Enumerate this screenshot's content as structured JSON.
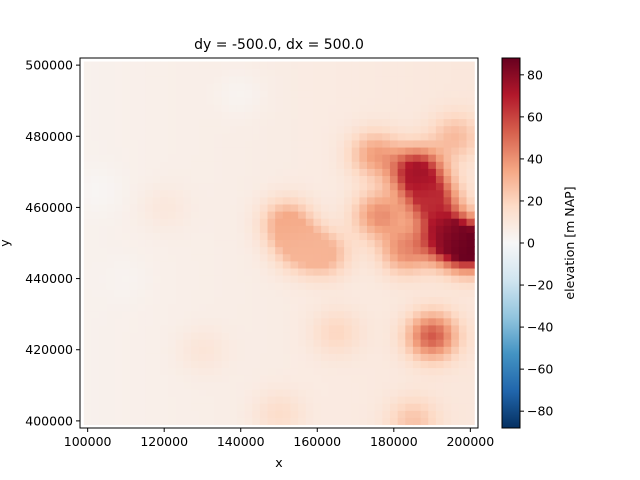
{
  "chart_data": {
    "type": "heatmap",
    "title": "dy = -500.0, dx = 500.0",
    "xlabel": "x",
    "ylabel": "y",
    "xlim": [
      98000,
      202000
    ],
    "ylim": [
      398000,
      502000
    ],
    "x_ticks": [
      {
        "value": 100000,
        "label": "100000"
      },
      {
        "value": 120000,
        "label": "120000"
      },
      {
        "value": 140000,
        "label": "140000"
      },
      {
        "value": 160000,
        "label": "160000"
      },
      {
        "value": 180000,
        "label": "180000"
      },
      {
        "value": 200000,
        "label": "200000"
      }
    ],
    "y_ticks": [
      {
        "value": 400000,
        "label": "400000"
      },
      {
        "value": 420000,
        "label": "420000"
      },
      {
        "value": 440000,
        "label": "440000"
      },
      {
        "value": 460000,
        "label": "460000"
      },
      {
        "value": 480000,
        "label": "480000"
      },
      {
        "value": 500000,
        "label": "500000"
      }
    ],
    "colorbar": {
      "label": "elevation [m NAP]",
      "colormap": "RdBu_r",
      "vmin": -88,
      "vmax": 88,
      "ticks": [
        {
          "value": 80,
          "label": "80"
        },
        {
          "value": 60,
          "label": "60"
        },
        {
          "value": 40,
          "label": "40"
        },
        {
          "value": 20,
          "label": "20"
        },
        {
          "value": 0,
          "label": "0"
        },
        {
          "value": -20,
          "label": "−20"
        },
        {
          "value": -40,
          "label": "−40"
        },
        {
          "value": -60,
          "label": "−60"
        },
        {
          "value": -80,
          "label": "−80"
        }
      ]
    },
    "features": [
      {
        "x": 186000,
        "y": 470000,
        "elevation": 75
      },
      {
        "x": 194000,
        "y": 452000,
        "elevation": 80
      },
      {
        "x": 200000,
        "y": 449000,
        "elevation": 88
      },
      {
        "x": 190000,
        "y": 462000,
        "elevation": 60
      },
      {
        "x": 183000,
        "y": 448000,
        "elevation": 35
      },
      {
        "x": 176000,
        "y": 458000,
        "elevation": 35
      },
      {
        "x": 175000,
        "y": 475000,
        "elevation": 30
      },
      {
        "x": 196000,
        "y": 480000,
        "elevation": 20
      },
      {
        "x": 152000,
        "y": 456000,
        "elevation": 30
      },
      {
        "x": 155000,
        "y": 449000,
        "elevation": 25
      },
      {
        "x": 162000,
        "y": 447000,
        "elevation": 25
      },
      {
        "x": 190000,
        "y": 424000,
        "elevation": 50
      },
      {
        "x": 185000,
        "y": 400000,
        "elevation": 18
      },
      {
        "x": 165000,
        "y": 425000,
        "elevation": 12
      },
      {
        "x": 120000,
        "y": 460000,
        "elevation": 5
      },
      {
        "x": 130000,
        "y": 420000,
        "elevation": 6
      },
      {
        "x": 150000,
        "y": 402000,
        "elevation": 10
      },
      {
        "x": 103000,
        "y": 465000,
        "elevation": -3
      },
      {
        "x": 140000,
        "y": 492000,
        "elevation": -4
      },
      {
        "x": 110000,
        "y": 440000,
        "elevation": -2
      }
    ]
  }
}
